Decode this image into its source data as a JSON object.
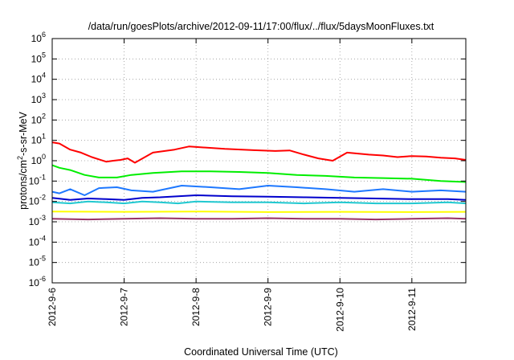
{
  "chart_data": {
    "type": "line",
    "title": "/data/run/goesPlots/archive/2012-09-11/17:00/flux/../flux/5daysMoonFluxes.txt",
    "xlabel": "Coordinated Universal Time (UTC)",
    "ylabel": {
      "base": "protons/cm",
      "sup": "2",
      "rest": "-s-sr-MeV"
    },
    "x_ticks": [
      "2012-9-6",
      "2012-9-7",
      "2012-9-8",
      "2012-9-9",
      "2012-9-10",
      "2012-9-11"
    ],
    "y_ticks": [
      {
        "base": "10",
        "exp": "6"
      },
      {
        "base": "10",
        "exp": "5"
      },
      {
        "base": "10",
        "exp": "4"
      },
      {
        "base": "10",
        "exp": "3"
      },
      {
        "base": "10",
        "exp": "2"
      },
      {
        "base": "10",
        "exp": "1"
      },
      {
        "base": "10",
        "exp": "0"
      },
      {
        "base": "10",
        "exp": "-1"
      },
      {
        "base": "10",
        "exp": "-2"
      },
      {
        "base": "10",
        "exp": "-3"
      },
      {
        "base": "10",
        "exp": "-4"
      },
      {
        "base": "10",
        "exp": "-5"
      },
      {
        "base": "10",
        "exp": "-6"
      }
    ],
    "xlim_days": [
      0,
      5.75
    ],
    "ylim": [
      1e-06,
      1000000.0
    ],
    "y_scale": "log",
    "grid": true,
    "series": [
      {
        "color": "#ff0000",
        "x": [
          0,
          0.1,
          0.25,
          0.4,
          0.55,
          0.75,
          0.85,
          0.95,
          1.05,
          1.15,
          1.4,
          1.7,
          1.9,
          2.1,
          2.4,
          2.8,
          3.1,
          3.3,
          3.5,
          3.7,
          3.9,
          4.1,
          4.4,
          4.6,
          4.8,
          5.0,
          5.2,
          5.4,
          5.6,
          5.75
        ],
        "y": [
          8,
          7,
          3.5,
          2.5,
          1.5,
          0.9,
          1.0,
          1.1,
          1.3,
          0.8,
          2.5,
          3.5,
          5,
          4.5,
          3.8,
          3.3,
          3.0,
          3.2,
          2.0,
          1.3,
          1.0,
          2.5,
          2.0,
          1.8,
          1.5,
          1.7,
          1.6,
          1.4,
          1.3,
          1.1
        ]
      },
      {
        "color": "#00ee00",
        "x": [
          0,
          0.1,
          0.25,
          0.45,
          0.65,
          0.9,
          1.1,
          1.4,
          1.8,
          2.2,
          2.6,
          3.0,
          3.4,
          3.8,
          4.2,
          4.6,
          5.0,
          5.4,
          5.75
        ],
        "y": [
          0.6,
          0.45,
          0.35,
          0.2,
          0.15,
          0.15,
          0.2,
          0.25,
          0.3,
          0.3,
          0.28,
          0.25,
          0.2,
          0.18,
          0.15,
          0.14,
          0.13,
          0.1,
          0.09
        ]
      },
      {
        "color": "#1e78ff",
        "x": [
          0,
          0.1,
          0.25,
          0.45,
          0.65,
          0.9,
          1.1,
          1.4,
          1.8,
          2.2,
          2.6,
          3.0,
          3.4,
          3.8,
          4.2,
          4.6,
          5.0,
          5.4,
          5.75
        ],
        "y": [
          0.03,
          0.025,
          0.04,
          0.02,
          0.045,
          0.05,
          0.035,
          0.03,
          0.06,
          0.05,
          0.04,
          0.06,
          0.05,
          0.04,
          0.03,
          0.04,
          0.03,
          0.035,
          0.03
        ]
      },
      {
        "color": "#20c8d0",
        "x": [
          0,
          0.25,
          0.5,
          0.75,
          1.0,
          1.25,
          1.5,
          1.75,
          2.0,
          2.5,
          3.0,
          3.5,
          4.0,
          4.5,
          5.0,
          5.5,
          5.75
        ],
        "y": [
          0.009,
          0.008,
          0.01,
          0.009,
          0.008,
          0.01,
          0.009,
          0.008,
          0.01,
          0.009,
          0.009,
          0.008,
          0.009,
          0.008,
          0.008,
          0.009,
          0.008
        ]
      },
      {
        "color": "#0000cc",
        "x": [
          0,
          0.25,
          0.5,
          0.75,
          1.0,
          1.25,
          1.5,
          1.75,
          2.0,
          2.5,
          3.0,
          3.5,
          4.0,
          4.5,
          5.0,
          5.5,
          5.75
        ],
        "y": [
          0.015,
          0.012,
          0.014,
          0.013,
          0.012,
          0.015,
          0.016,
          0.018,
          0.02,
          0.018,
          0.017,
          0.016,
          0.015,
          0.014,
          0.013,
          0.013,
          0.012
        ]
      },
      {
        "color": "#ffff00",
        "x": [
          0,
          1,
          2,
          3,
          4,
          5,
          5.75
        ],
        "y": [
          0.0032,
          0.0031,
          0.0032,
          0.003,
          0.0031,
          0.003,
          0.0031
        ]
      },
      {
        "color": "#993366",
        "x": [
          0,
          0.5,
          1,
          1.5,
          2,
          2.5,
          3,
          3.5,
          4,
          4.5,
          5,
          5.5,
          5.75
        ],
        "y": [
          0.0014,
          0.0013,
          0.0014,
          0.0015,
          0.0014,
          0.0014,
          0.0015,
          0.0014,
          0.0014,
          0.0013,
          0.0014,
          0.0015,
          0.0014
        ]
      }
    ]
  }
}
